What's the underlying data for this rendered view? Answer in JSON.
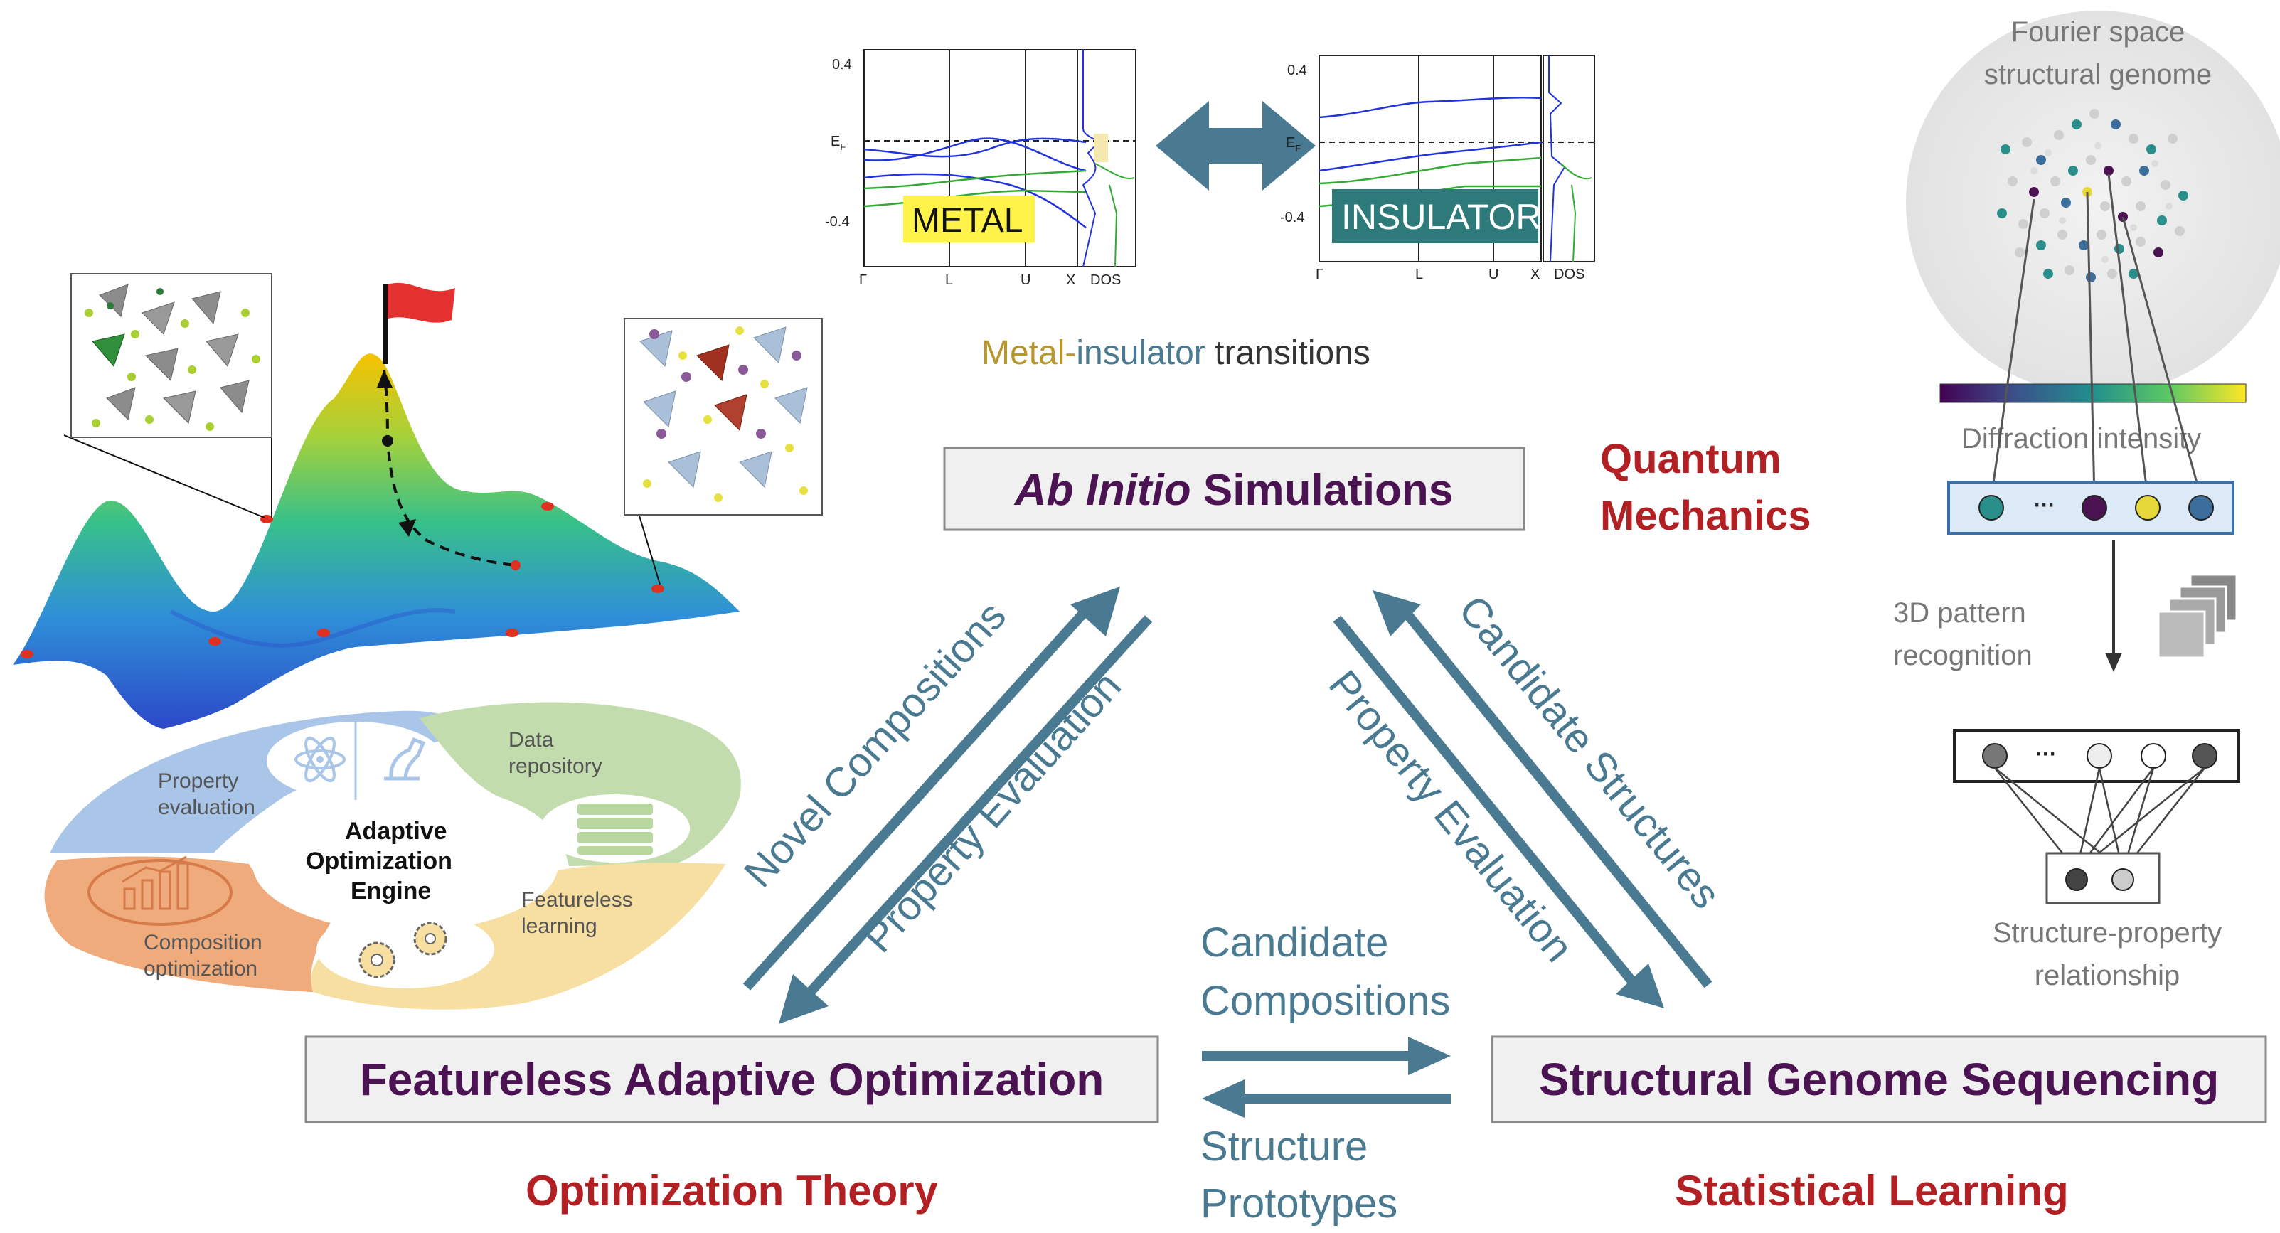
{
  "colors": {
    "teal": "#4a7a91",
    "purple": "#4b1352",
    "red": "#b32024",
    "gold": "#b8962e",
    "gray_text": "#777777",
    "box_fill": "#f0f0f0",
    "box_border": "#8a8a8a"
  },
  "top_center": {
    "metal_chart": {
      "yticks": [
        "0.4",
        "E",
        "-0.4"
      ],
      "ef_sub": "F",
      "xticks": [
        "Γ",
        "L",
        "U",
        "X",
        "DOS"
      ],
      "tag": "METAL"
    },
    "insulator_chart": {
      "yticks": [
        "0.4",
        "E",
        "-0.4"
      ],
      "ef_sub": "F",
      "xticks": [
        "Γ",
        "L",
        "U",
        "X",
        "DOS"
      ],
      "tag": "INSULATOR"
    },
    "caption": {
      "metal": "Metal",
      "dash": "-",
      "insulator": "insulator",
      "rest": " transitions"
    }
  },
  "boxes": {
    "ab_initio": {
      "italic": "Ab Initio",
      "rest": " Simulations"
    },
    "featureless": "Featureless Adaptive Optimization",
    "structural": "Structural Genome Sequencing"
  },
  "fields": {
    "quantum_1": "Quantum",
    "quantum_2": "Mechanics",
    "optimization": "Optimization Theory",
    "statistical": "Statistical Learning"
  },
  "arrows": {
    "novel": "Novel Compositions",
    "prop_left": "Property Evaluation",
    "candidate_structures": "Candidate Structures",
    "prop_right": "Property Evaluation",
    "cand_comp_1": "Candidate",
    "cand_comp_2": "Compositions",
    "struct_proto_1": "Structure",
    "struct_proto_2": "Prototypes"
  },
  "engine": {
    "center_1": "Adaptive",
    "center_2": "Optimization",
    "center_3": "Engine",
    "property_1": "Property",
    "property_2": "evaluation",
    "data_1": "Data",
    "data_2": "repository",
    "composition_1": "Composition",
    "composition_2": "optimization",
    "featureless_1": "Featureless",
    "featureless_2": "learning"
  },
  "right_panel": {
    "title_1": "Fourier space",
    "title_2": "structural genome",
    "diffraction": "Diffraction intensity",
    "dots": "···",
    "pattern_1": "3D pattern",
    "pattern_2": "recognition",
    "relationship_1": "Structure-property",
    "relationship_2": "relationship"
  }
}
